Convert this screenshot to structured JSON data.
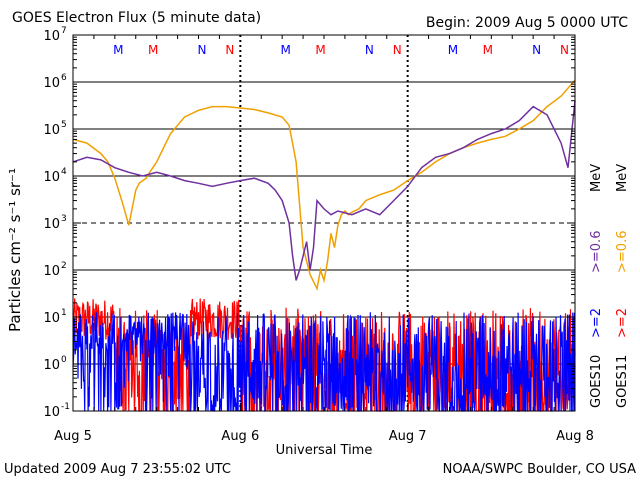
{
  "header": {
    "title": "GOES Electron Flux (5 minute data)",
    "begin": "Begin: 2009 Aug 5 0000 UTC"
  },
  "footer": {
    "updated": "Updated 2009 Aug  7 23:55:02 UTC",
    "source": "NOAA/SWPC Boulder, CO USA"
  },
  "colors": {
    "goes10_high": "#0000ff",
    "goes10_low": "#7030a0",
    "goes11_high": "#ff0000",
    "goes11_low": "#f0a000",
    "marker_M": "#0000ff",
    "marker_M2": "#ff0000",
    "marker_N": "#0000ff",
    "marker_N2": "#ff0000"
  },
  "chart_data": {
    "type": "line",
    "xlabel": "Universal Time",
    "ylabel": "Particles cm⁻² s⁻¹ sr⁻¹",
    "y_scale": "log",
    "ylim": [
      0.1,
      10000000
    ],
    "xlim": [
      "2009-08-05 00:00",
      "2009-08-08 00:00"
    ],
    "x_ticks": [
      "Aug 5",
      "Aug 6",
      "Aug 7",
      "Aug 8"
    ],
    "y_ticks": [
      {
        "value": 10000000,
        "base": "10",
        "exp": "7"
      },
      {
        "value": 1000000,
        "base": "10",
        "exp": "6"
      },
      {
        "value": 100000,
        "base": "10",
        "exp": "5"
      },
      {
        "value": 10000,
        "base": "10",
        "exp": "4"
      },
      {
        "value": 1000,
        "base": "10",
        "exp": "3"
      },
      {
        "value": 100,
        "base": "10",
        "exp": "2"
      },
      {
        "value": 10,
        "base": "10",
        "exp": "1"
      },
      {
        "value": 1,
        "base": "10",
        "exp": "0"
      },
      {
        "value": 0.1,
        "base": "10",
        "exp": "-1"
      }
    ],
    "threshold_lines": [
      1000
    ],
    "day_markers": [
      {
        "day": 0,
        "labels": [
          {
            "t": "M",
            "hour": 6.5,
            "c": "marker_M"
          },
          {
            "t": "M",
            "hour": 11.5,
            "c": "marker_M2"
          },
          {
            "t": "N",
            "hour": 18.5,
            "c": "marker_N"
          },
          {
            "t": "N",
            "hour": 22.5,
            "c": "marker_N2"
          }
        ]
      },
      {
        "day": 1,
        "labels": [
          {
            "t": "M",
            "hour": 6.5,
            "c": "marker_M"
          },
          {
            "t": "M",
            "hour": 11.5,
            "c": "marker_M2"
          },
          {
            "t": "N",
            "hour": 18.5,
            "c": "marker_N"
          },
          {
            "t": "N",
            "hour": 22.5,
            "c": "marker_N2"
          }
        ]
      },
      {
        "day": 2,
        "labels": [
          {
            "t": "M",
            "hour": 6.5,
            "c": "marker_M"
          },
          {
            "t": "M",
            "hour": 11.5,
            "c": "marker_M2"
          },
          {
            "t": "N",
            "hour": 18.5,
            "c": "marker_N"
          },
          {
            "t": "N",
            "hour": 22.5,
            "c": "marker_N2"
          }
        ]
      }
    ],
    "legend": {
      "placement": "right",
      "satellites": [
        {
          "name": "GOES10",
          "high": ">=2",
          "low": ">=0.6",
          "high_color": "goes10_high",
          "low_color": "goes10_low"
        },
        {
          "name": "GOES11",
          "high": ">=2",
          "low": ">=0.6",
          "high_color": "goes11_high",
          "low_color": "goes11_low"
        }
      ],
      "unit": "MeV"
    },
    "series": [
      {
        "key": "goes11_low",
        "color": "goes11_low",
        "x_hours": [
          0,
          2,
          4,
          5,
          6,
          7,
          8,
          9,
          9.5,
          10,
          10.5,
          11,
          12,
          13,
          14,
          15,
          16,
          18,
          20,
          22,
          24,
          26,
          28,
          30,
          31,
          32,
          33,
          34,
          35,
          35.5,
          36,
          36.5,
          37,
          37.5,
          38,
          38.5,
          39,
          39.5,
          40,
          41,
          42,
          44,
          46,
          48,
          50,
          52,
          54,
          56,
          58,
          60,
          62,
          64,
          66,
          68,
          70,
          72
        ],
        "values": [
          60000,
          50000,
          30000,
          20000,
          9000,
          3000,
          900,
          5000,
          7000,
          8000,
          9000,
          12000,
          20000,
          40000,
          80000,
          120000,
          180000,
          250000,
          300000,
          300000,
          280000,
          260000,
          220000,
          180000,
          120000,
          20000,
          300,
          80,
          40,
          100,
          60,
          150,
          600,
          300,
          900,
          1500,
          1800,
          1500,
          1700,
          2000,
          3000,
          4000,
          5000,
          8000,
          12000,
          20000,
          30000,
          40000,
          50000,
          60000,
          70000,
          100000,
          150000,
          300000,
          500000,
          1100000
        ]
      },
      {
        "key": "goes10_low",
        "color": "goes10_low",
        "x_hours": [
          0,
          2,
          4,
          6,
          8,
          10,
          12,
          14,
          16,
          18,
          20,
          22,
          24,
          26,
          28,
          29,
          30,
          31,
          31.5,
          32,
          32.5,
          33,
          33.5,
          34,
          34.5,
          35,
          36,
          37,
          38,
          40,
          42,
          44,
          46,
          48,
          50,
          52,
          54,
          56,
          58,
          60,
          62,
          64,
          66,
          68,
          70,
          71,
          72
        ],
        "values": [
          20000,
          25000,
          22000,
          15000,
          12000,
          10000,
          12000,
          10000,
          8000,
          7000,
          6000,
          7000,
          8000,
          9000,
          7000,
          5000,
          3000,
          1000,
          200,
          60,
          100,
          200,
          400,
          100,
          300,
          3000,
          2000,
          1500,
          1800,
          1500,
          2000,
          1500,
          3000,
          6000,
          15000,
          25000,
          30000,
          40000,
          60000,
          80000,
          100000,
          150000,
          300000,
          200000,
          50000,
          15000,
          400000
        ]
      }
    ],
    "noise_series": [
      {
        "key": "goes11_high",
        "color": "goes11_high",
        "description_levels": {
          "min": 0.1,
          "max": 20
        }
      },
      {
        "key": "goes10_high",
        "color": "goes10_high",
        "description_levels": {
          "min": 0.1,
          "max": 15
        }
      }
    ]
  }
}
